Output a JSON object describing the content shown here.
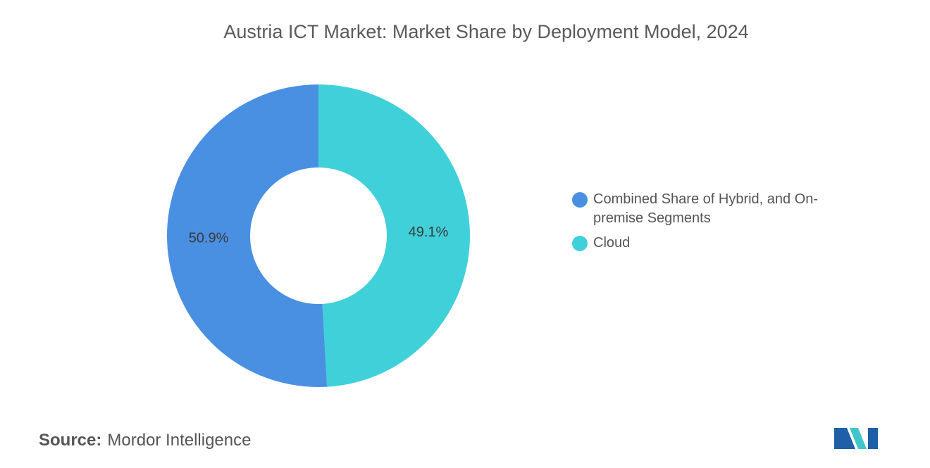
{
  "chart_data": {
    "type": "pie",
    "donut": true,
    "title": "Austria ICT Market: Market Share by Deployment Model, 2024",
    "categories": [
      "Combined Share of Hybrid, and On-premise Segments",
      "Cloud"
    ],
    "values": [
      50.9,
      49.1
    ],
    "value_labels": [
      "50.9%",
      "49.1%"
    ],
    "colors": [
      "#4a90e2",
      "#40d0d9"
    ],
    "legend": "right"
  },
  "source": {
    "label": "Source:",
    "text": "Mordor Intelligence"
  }
}
